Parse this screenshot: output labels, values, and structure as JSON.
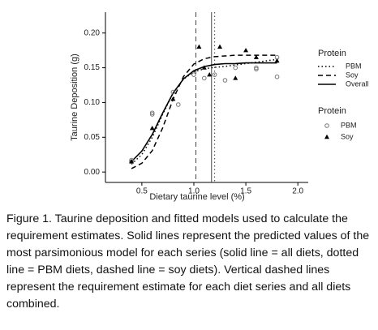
{
  "chart_data": {
    "type": "line",
    "x_label": "Dietary taurine level (%)",
    "y_label": "Taurine Deposition (g)",
    "xlim": [
      0.15,
      2.1
    ],
    "ylim": [
      -0.015,
      0.23
    ],
    "xticks": [
      0.5,
      {
        "value": 1,
        "label": "1.0"
      },
      1.5,
      {
        "value": 2,
        "label": "2.0"
      }
    ],
    "yticks": [
      {
        "value": 0,
        "label": "0.00"
      },
      {
        "value": 0.05,
        "label": "0.05"
      },
      {
        "value": 0.1,
        "label": "0.10"
      },
      {
        "value": 0.15,
        "label": "0.15"
      },
      {
        "value": 0.2,
        "label": "0.20"
      }
    ],
    "legend_titles": [
      "Protein",
      "Protein"
    ],
    "series": [
      {
        "name": "PBM",
        "kind": "line",
        "dash": "dotted",
        "color": "#000000",
        "x": [
          0.4,
          0.5,
          0.6,
          0.7,
          0.8,
          0.9,
          1.0,
          1.1,
          1.2,
          1.3,
          1.4,
          1.5,
          1.6,
          1.7,
          1.8
        ],
        "values": [
          0.0113,
          0.0251,
          0.0498,
          0.0828,
          0.1134,
          0.1336,
          0.144,
          0.1486,
          0.1506,
          0.152,
          0.154,
          0.156,
          0.158,
          0.16,
          0.162
        ]
      },
      {
        "name": "Soy",
        "kind": "line",
        "dash": "dashed",
        "color": "#000000",
        "x": [
          0.4,
          0.5,
          0.6,
          0.7,
          0.8,
          0.9,
          1.0,
          1.1,
          1.2,
          1.3,
          1.4,
          1.5,
          1.6,
          1.7,
          1.8
        ],
        "values": [
          0.0049,
          0.0127,
          0.0307,
          0.0634,
          0.1045,
          0.1374,
          0.1553,
          0.163,
          0.166,
          0.167,
          0.168,
          0.168,
          0.168,
          0.168,
          0.168
        ]
      },
      {
        "name": "Overall",
        "kind": "line",
        "dash": "solid",
        "color": "#000000",
        "x": [
          0.4,
          0.5,
          0.6,
          0.7,
          0.8,
          0.9,
          1.0,
          1.1,
          1.2,
          1.3,
          1.4,
          1.5,
          1.6,
          1.7,
          1.8
        ],
        "values": [
          0.0151,
          0.0301,
          0.0541,
          0.0848,
          0.1135,
          0.134,
          0.1458,
          0.1517,
          0.1546,
          0.1559,
          0.156,
          0.157,
          0.157,
          0.157,
          0.157
        ]
      },
      {
        "name": "PBM",
        "kind": "point",
        "marker": "circle",
        "color": "#777777",
        "x": [
          0.4,
          0.4,
          0.6,
          0.6,
          0.8,
          0.85,
          1.0,
          1.1,
          1.2,
          1.3,
          1.4,
          1.6,
          1.6,
          1.8,
          1.8
        ],
        "values": [
          0.017,
          0.015,
          0.085,
          0.083,
          0.115,
          0.097,
          0.14,
          0.135,
          0.14,
          0.132,
          0.15,
          0.15,
          0.148,
          0.137,
          0.165
        ]
      },
      {
        "name": "Soy",
        "kind": "point",
        "marker": "triangle",
        "color": "#000000",
        "x": [
          0.4,
          0.6,
          0.8,
          1.05,
          1.1,
          1.15,
          1.25,
          1.4,
          1.5,
          1.6,
          1.8
        ],
        "values": [
          0.015,
          0.063,
          0.105,
          0.18,
          0.15,
          0.14,
          0.18,
          0.135,
          0.175,
          0.165,
          0.16
        ]
      }
    ],
    "vlines": [
      {
        "x": 1.02,
        "dash": "dashed"
      },
      {
        "x": 1.17,
        "dash": "solid"
      },
      {
        "x": 1.2,
        "dash": "dotted"
      }
    ],
    "caption": "Figure 1. Taurine deposition and fitted models used to calculate the requirement estimates. Solid lines represent the predicted values of the most parsimonious model for each series (solid line = all diets, dotted line = PBM diets, dashed line = soy diets). Vertical dashed lines represent the requirement estimate for each diet series and all diets combined."
  }
}
